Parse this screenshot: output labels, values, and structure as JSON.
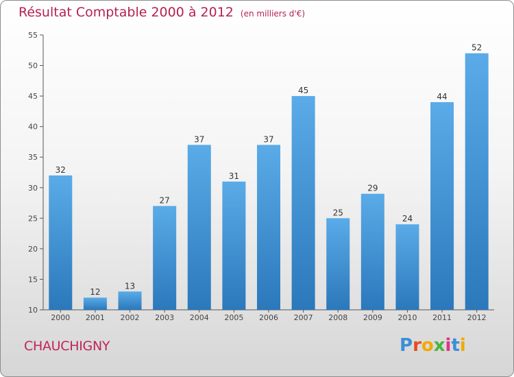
{
  "header": {
    "title": "Résultat Comptable 2000 à 2012",
    "subtitle": "(en milliers d'€)"
  },
  "footer": {
    "commune": "CHAUCHIGNY",
    "logo_letters": [
      "P",
      "r",
      "o",
      "x",
      "i",
      "t",
      "i"
    ]
  },
  "colors": {
    "title": "#b5214f",
    "bar_top": "#5aabe8",
    "bar_bottom": "#2b78bb",
    "logo": [
      "#3a8fd6",
      "#e74c1c",
      "#f2a900",
      "#4bb43c",
      "#e0338a",
      "#3a8fd6",
      "#f2a900"
    ]
  },
  "chart_data": {
    "type": "bar",
    "title": "Résultat Comptable 2000 à 2012",
    "subtitle": "(en milliers d'€)",
    "xlabel": "",
    "ylabel": "",
    "categories": [
      "2000",
      "2001",
      "2002",
      "2003",
      "2004",
      "2005",
      "2006",
      "2007",
      "2008",
      "2009",
      "2010",
      "2011",
      "2012"
    ],
    "values": [
      32,
      12,
      13,
      27,
      37,
      31,
      37,
      45,
      25,
      29,
      24,
      44,
      52
    ],
    "ylim": [
      10,
      55
    ],
    "yticks": [
      10,
      15,
      20,
      25,
      30,
      35,
      40,
      45,
      50,
      55
    ],
    "grid": false,
    "legend": "none"
  }
}
